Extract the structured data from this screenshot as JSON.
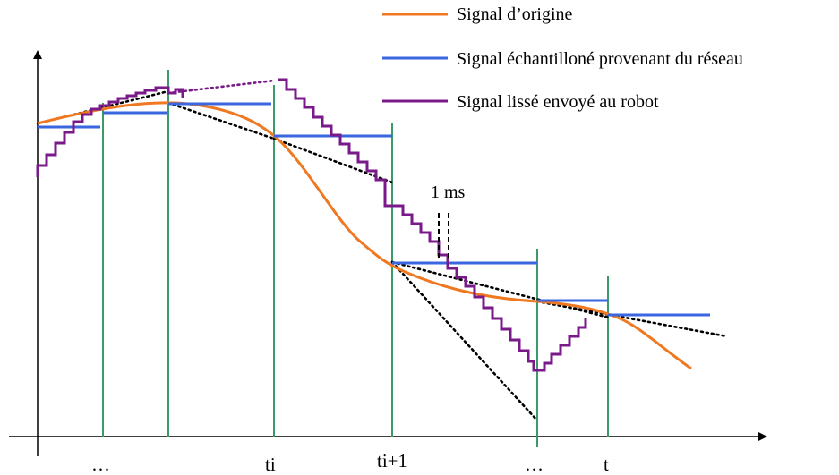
{
  "legend": [
    {
      "label": "Signal d’origine",
      "color": "#f07820"
    },
    {
      "label": "Signal échantilloné provenant du réseau",
      "color": "#3a66e0"
    },
    {
      "label": "Signal lissé envoyé au robot",
      "color": "#7a1a8a"
    }
  ],
  "x_ticks": [
    "…",
    "ti",
    "ti+1",
    "…",
    "t"
  ],
  "annotation": "1 ms",
  "colors": {
    "axis": "#000000",
    "gridline": "#3a9a6a",
    "tangent": "#000000"
  }
}
